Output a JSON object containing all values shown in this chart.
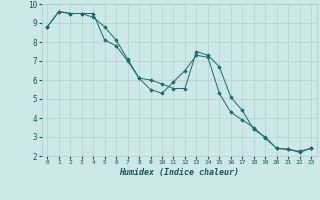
{
  "title": "",
  "xlabel": "Humidex (Indice chaleur)",
  "ylabel": "",
  "background_color": "#cce8e8",
  "grid_color": "#b8d4d4",
  "line_color": "#1a6b6b",
  "marker_color": "#1a6b6b",
  "xlim": [
    -0.5,
    23.5
  ],
  "ylim": [
    2,
    10
  ],
  "xticks": [
    0,
    1,
    2,
    3,
    4,
    5,
    6,
    7,
    8,
    9,
    10,
    11,
    12,
    13,
    14,
    15,
    16,
    17,
    18,
    19,
    20,
    21,
    22,
    23
  ],
  "yticks": [
    2,
    3,
    4,
    5,
    6,
    7,
    8,
    9,
    10
  ],
  "line1_x": [
    0,
    1,
    2,
    3,
    4,
    5,
    6,
    7,
    8,
    9,
    10,
    11,
    12,
    13,
    14,
    15,
    16,
    17,
    18,
    19,
    20,
    21,
    22,
    23
  ],
  "line1_y": [
    8.8,
    9.6,
    9.5,
    9.5,
    9.5,
    8.1,
    7.8,
    7.0,
    6.1,
    5.5,
    5.3,
    5.9,
    6.5,
    7.3,
    7.2,
    5.3,
    4.3,
    3.9,
    3.5,
    2.95,
    2.4,
    2.35,
    2.25,
    2.4
  ],
  "line2_x": [
    0,
    1,
    2,
    3,
    4,
    5,
    6,
    7,
    8,
    9,
    10,
    11,
    12,
    13,
    14,
    15,
    16,
    17,
    18,
    19,
    20,
    21,
    22,
    23
  ],
  "line2_y": [
    8.8,
    9.6,
    9.5,
    9.5,
    9.3,
    8.8,
    8.1,
    7.1,
    6.1,
    6.0,
    5.8,
    5.55,
    5.55,
    7.5,
    7.3,
    6.7,
    5.1,
    4.4,
    3.4,
    3.0,
    2.4,
    2.35,
    2.2,
    2.4
  ]
}
